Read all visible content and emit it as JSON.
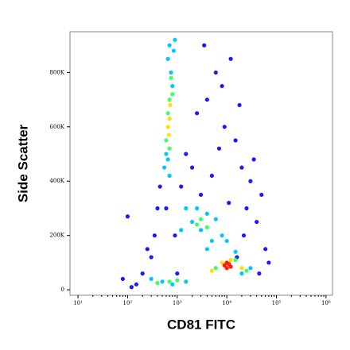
{
  "chart_data": {
    "type": "scatter",
    "xlabel": "CD81 FITC",
    "ylabel": "Side Scatter",
    "xscale": "log",
    "xlim": [
      6.9,
      1350000
    ],
    "ylim": [
      -20000,
      950000
    ],
    "xticks": [
      {
        "value": 10,
        "label": "10¹"
      },
      {
        "value": 100,
        "label": "10²"
      },
      {
        "value": 1000,
        "label": "10³"
      },
      {
        "value": 10000,
        "label": "10⁴"
      },
      {
        "value": 100000,
        "label": "10⁵"
      },
      {
        "value": 1000000,
        "label": "10⁶"
      }
    ],
    "yticks": [
      0,
      {
        "value": 200000,
        "label": "200K"
      },
      {
        "value": 400000,
        "label": "400K"
      },
      {
        "value": 600000,
        "label": "600K"
      },
      {
        "value": 800000,
        "label": "800K"
      }
    ],
    "series": [
      {
        "color": "#1a1aff",
        "x": [
          150,
          200,
          300,
          400,
          1500,
          2500,
          4000,
          6000,
          9000,
          15000,
          20000,
          30000,
          3000,
          5000,
          8000,
          12000,
          25000,
          40000,
          60000,
          2000,
          7000,
          18000,
          35000,
          50000,
          1200,
          450,
          350,
          250,
          120,
          80,
          100,
          3500,
          11000,
          22000,
          16000,
          900,
          600,
          1000,
          45000,
          70000
        ],
        "y": [
          20000,
          60000,
          120000,
          300000,
          500000,
          650000,
          700000,
          800000,
          600000,
          550000,
          450000,
          400000,
          350000,
          420000,
          750000,
          850000,
          300000,
          250000,
          150000,
          450000,
          520000,
          680000,
          480000,
          350000,
          380000,
          380000,
          200000,
          150000,
          10000,
          40000,
          270000,
          900000,
          320000,
          200000,
          120000,
          200000,
          300000,
          60000,
          60000,
          100000
        ]
      },
      {
        "color": "#00c8ff",
        "x": [
          550,
          600,
          650,
          700,
          750,
          800,
          850,
          900,
          700,
          650,
          1500,
          2000,
          3000,
          4000,
          6000,
          8000,
          1200,
          2500,
          5000,
          10000,
          300,
          500,
          800,
          1500,
          20000,
          30000,
          4000,
          15000
        ],
        "y": [
          450000,
          500000,
          850000,
          900000,
          800000,
          750000,
          880000,
          920000,
          420000,
          480000,
          300000,
          250000,
          220000,
          280000,
          260000,
          200000,
          220000,
          300000,
          180000,
          180000,
          40000,
          30000,
          20000,
          30000,
          60000,
          80000,
          150000,
          140000
        ]
      },
      {
        "color": "#40ff60",
        "x": [
          600,
          650,
          700,
          750,
          650,
          700,
          800,
          2500,
          4000,
          3000,
          6000,
          15000,
          25000,
          400,
          700,
          1000
        ],
        "y": [
          550000,
          650000,
          700000,
          780000,
          600000,
          520000,
          720000,
          240000,
          230000,
          260000,
          80000,
          110000,
          70000,
          25000,
          30000,
          35000
        ]
      },
      {
        "color": "#ffe000",
        "x": [
          650,
          700,
          680,
          720,
          5000,
          8000,
          20000,
          12000
        ],
        "y": [
          600000,
          630000,
          570000,
          680000,
          70000,
          100000,
          80000,
          110000
        ]
      },
      {
        "color": "#ff2000",
        "x": [
          9000,
          10000,
          11000,
          12000,
          10000
        ],
        "y": [
          90000,
          80000,
          95000,
          85000,
          100000
        ]
      }
    ]
  }
}
